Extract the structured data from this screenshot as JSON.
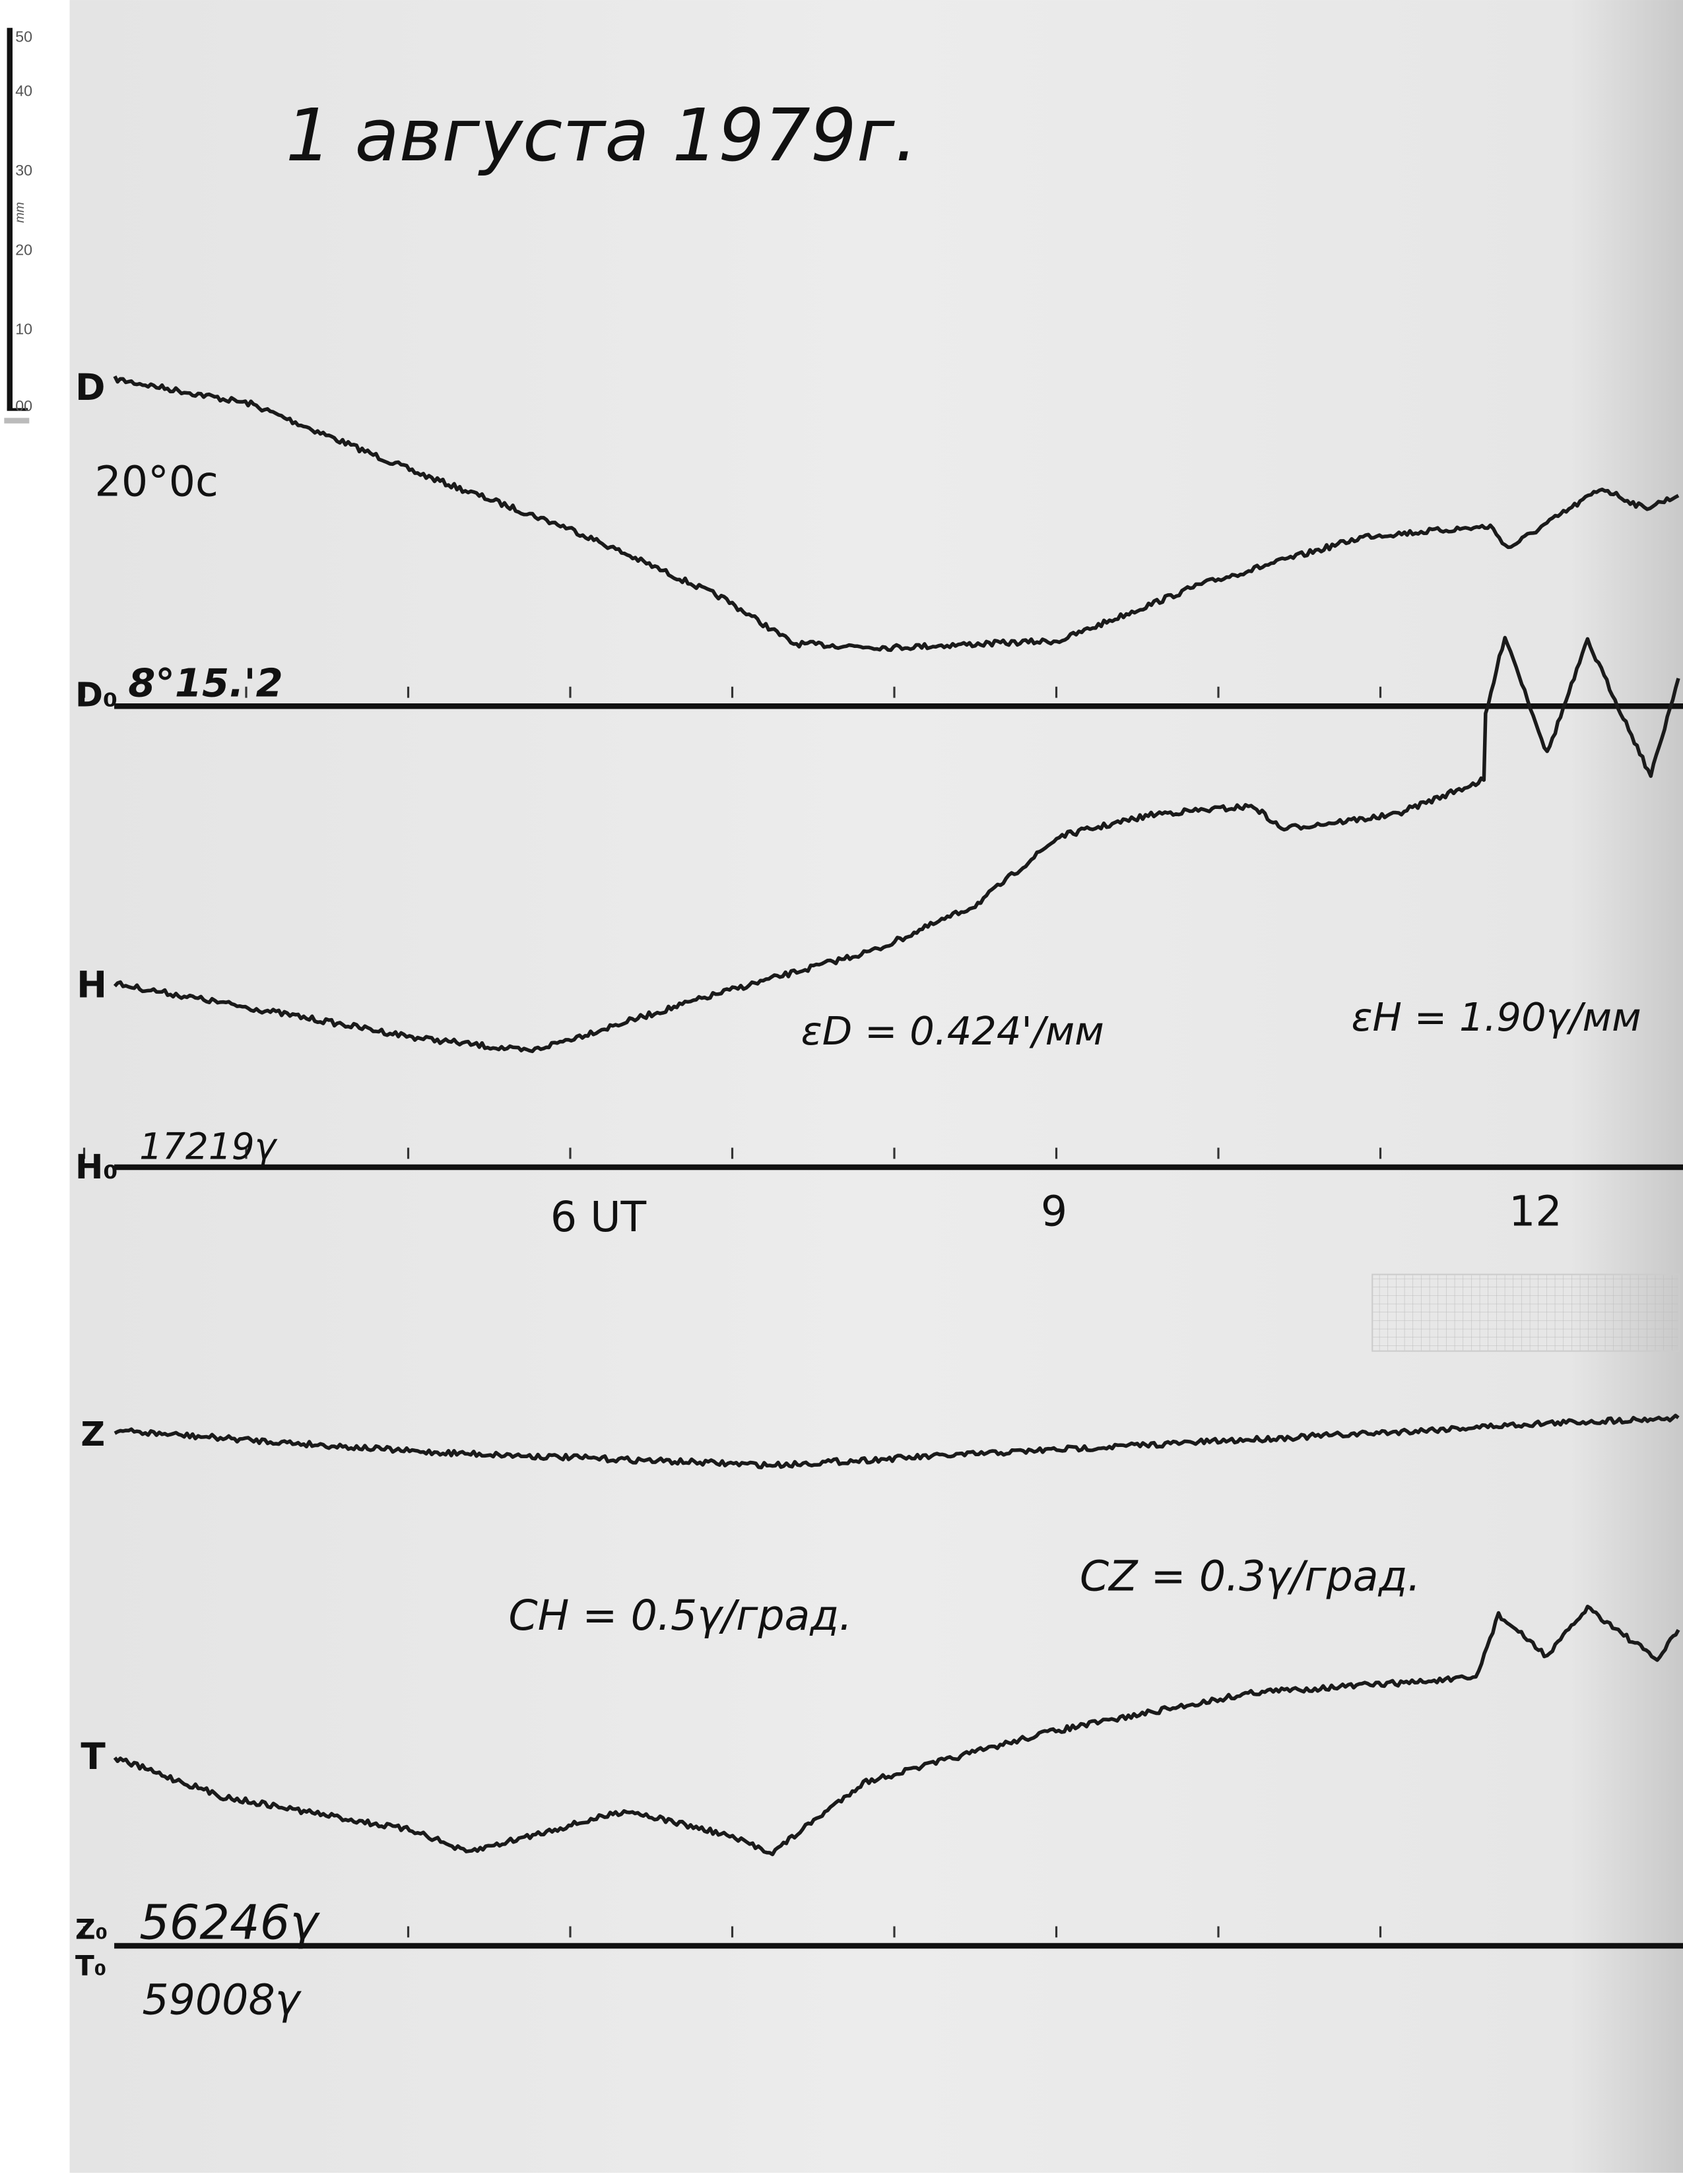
{
  "title": "1 августа 1979г.",
  "scale_bar": {
    "unit": "mm",
    "ticks": [
      "00",
      "10",
      "20",
      "30",
      "40",
      "50"
    ]
  },
  "labels": {
    "d": "D",
    "d_temp": "20°0с",
    "d0": "D₀",
    "d0_value": "8°15.'2",
    "h": "H",
    "h0": "H₀",
    "h0_value": "17219γ",
    "z": "Z",
    "t": "T",
    "z0": "Z₀",
    "t0": "T₀",
    "z0_value": "56246γ",
    "t0_value": "59008γ",
    "eps_d": "εD = 0.424'/мм",
    "eps_h": "εH = 1.90γ/мм",
    "c_h": "CH = 0.5γ/град.",
    "c_z": "CZ = 0.3γ/град."
  },
  "colors": {
    "paper": "#e9e9e9",
    "ink": "#111111",
    "trace": "#1a1a1a"
  },
  "chart_data": {
    "type": "line",
    "title": "1 августа 1979г.",
    "xlabel": "UT",
    "x_ticks": [
      {
        "value": 6,
        "label": "6 UT"
      },
      {
        "value": 9,
        "label": "9"
      },
      {
        "value": 12,
        "label": "12"
      }
    ],
    "xlim": [
      3.2,
      12.9
    ],
    "hour_marks": [
      4,
      5,
      6,
      7,
      8,
      9,
      10,
      11,
      12
    ],
    "ylabel": "mm",
    "series": [
      {
        "name": "D",
        "baseline": "D₀",
        "x": [
          3.2,
          4.04,
          5.07,
          6.02,
          6.96,
          7.39,
          7.99,
          9.03,
          9.89,
          10.92,
          11.69,
          11.8,
          12.38,
          12.64,
          12.85
        ],
        "y": [
          43.5,
          40.2,
          31,
          23.5,
          14.3,
          8.3,
          7.8,
          8.7,
          16.1,
          22.6,
          23.9,
          21,
          29,
          26.3,
          28
        ]
      },
      {
        "name": "H",
        "baseline": "H₀",
        "x": [
          3.2,
          5.07,
          5.76,
          6.96,
          7.91,
          8.51,
          9.03,
          9.63,
          10.23,
          10.4,
          11.09,
          11.65,
          11.66,
          11.78,
          12.04,
          12.29,
          12.68,
          12.85
        ],
        "y": [
          24.4,
          17.2,
          15.4,
          23.3,
          29,
          34.8,
          44,
          47,
          48,
          45,
          46.8,
          51.5,
          60,
          70.7,
          55,
          70,
          52,
          65
        ]
      },
      {
        "name": "Z",
        "baseline": "Z₀",
        "x": [
          3.2,
          5.07,
          7.26,
          9.03,
          11.09,
          11.95,
          12.85
        ],
        "y": [
          68.5,
          65.7,
          63.9,
          66,
          68.3,
          69.4,
          70.2
        ]
      },
      {
        "name": "T",
        "baseline": "T₀",
        "x": [
          3.2,
          3.87,
          5.07,
          5.37,
          6.36,
          6.96,
          7.26,
          7.82,
          8.94,
          10.23,
          11.6,
          11.74,
          12.04,
          12.29,
          12.72,
          12.85
        ],
        "y": [
          25,
          19.8,
          15.2,
          12.4,
          18,
          14.8,
          12.4,
          21.7,
          28.3,
          33.7,
          35.6,
          44,
          38.5,
          45,
          38,
          42
        ]
      }
    ]
  }
}
